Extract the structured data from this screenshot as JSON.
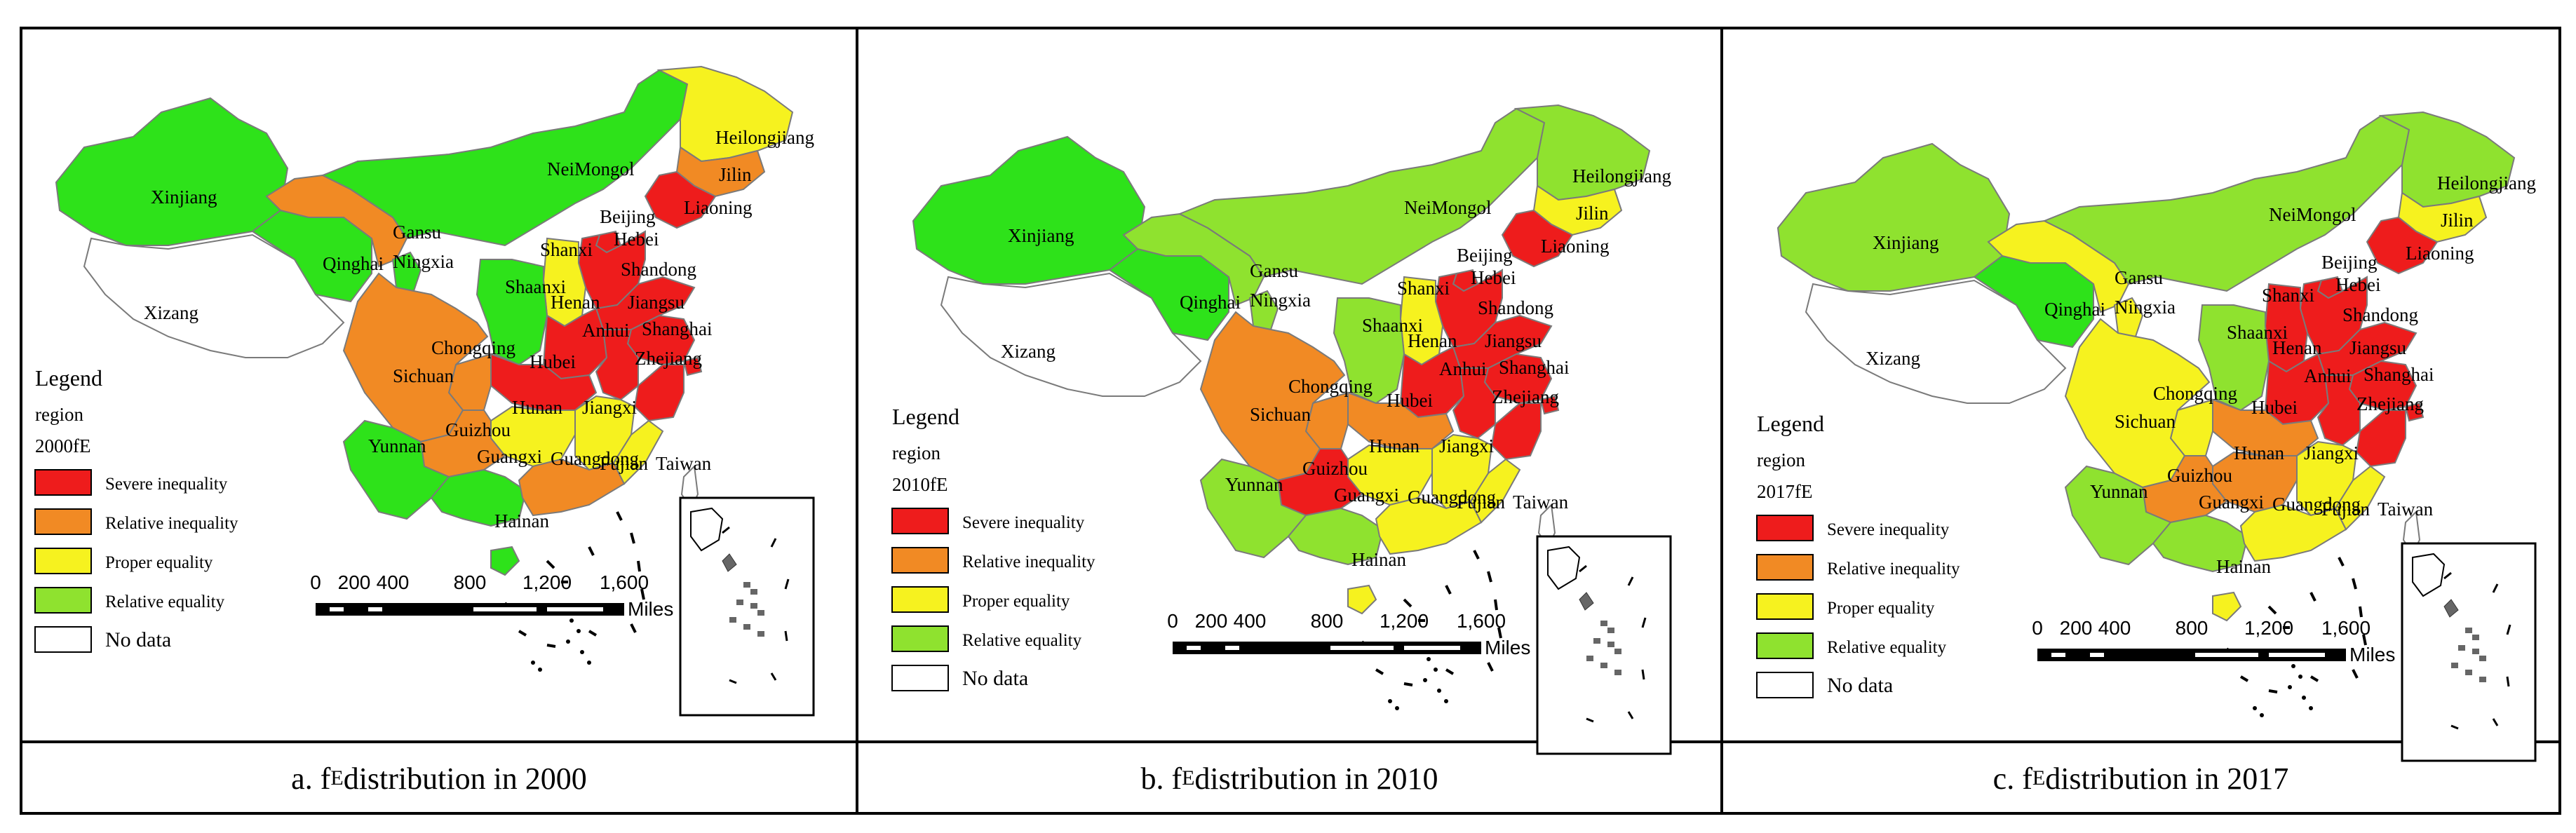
{
  "colors": {
    "severe": "#ee1c1c",
    "relative_inequality": "#f18a24",
    "proper": "#f6f21f",
    "relative_equality": "#8fe22f",
    "green_2000": "#2ee21a",
    "nodata": "#ffffff",
    "border": "#7a7a7a"
  },
  "legend_labels": {
    "title": "Legend",
    "region": "region",
    "severe": "Severe inequality",
    "relative_inequality": "Relative inequality",
    "proper": "Proper equality",
    "relative_equality": "Relative equality",
    "nodata": "No data"
  },
  "scalebar": {
    "ticks": [
      "0",
      "200",
      "400",
      "800",
      "1,200",
      "1,600"
    ],
    "unit": "Miles"
  },
  "panels": [
    {
      "year_label": "2000fE",
      "caption_prefix": "a. f",
      "caption_sub": "E",
      "caption_suffix": " distribution in 2000",
      "regions": {
        "Xinjiang": "equality",
        "Xizang": "nodata",
        "Qinghai": "equality",
        "Gansu": "relative_inequality",
        "Ningxia": "equality",
        "NeiMongol": "equality",
        "Heilongjiang": "proper",
        "Jilin": "relative_inequality",
        "Liaoning": "severe",
        "Beijing": "severe",
        "Hebei": "severe",
        "Shanxi": "proper",
        "Shaanxi": "equality",
        "Shandong": "severe",
        "Henan": "severe",
        "Jiangsu": "severe",
        "Anhui": "severe",
        "Shanghai": "severe",
        "Hubei": "severe",
        "Chongqing": "relative_inequality",
        "Sichuan": "relative_inequality",
        "Zhejiang": "severe",
        "Hunan": "proper",
        "Jiangxi": "proper",
        "Guizhou": "relative_inequality",
        "Yunnan": "equality",
        "Guangxi": "equality",
        "Guangdong": "relative_inequality",
        "Fujian": "proper",
        "Taiwan": "nodata",
        "Hainan": "equality"
      }
    },
    {
      "year_label": "2010fE",
      "caption_prefix": "b. f",
      "caption_sub": "E",
      "caption_suffix": " distribution in 2010",
      "regions": {
        "Xinjiang": "equality",
        "Xizang": "nodata",
        "Qinghai": "equality",
        "Gansu": "relative_equality",
        "Ningxia": "relative_equality",
        "NeiMongol": "relative_equality",
        "Heilongjiang": "relative_equality",
        "Jilin": "proper",
        "Liaoning": "severe",
        "Beijing": "severe",
        "Hebei": "severe",
        "Shanxi": "proper",
        "Shaanxi": "relative_equality",
        "Shandong": "severe",
        "Henan": "severe",
        "Jiangsu": "severe",
        "Anhui": "severe",
        "Shanghai": "severe",
        "Hubei": "relative_inequality",
        "Chongqing": "relative_inequality",
        "Sichuan": "relative_inequality",
        "Zhejiang": "severe",
        "Hunan": "proper",
        "Jiangxi": "proper",
        "Guizhou": "severe",
        "Yunnan": "relative_equality",
        "Guangxi": "relative_equality",
        "Guangdong": "proper",
        "Fujian": "proper",
        "Taiwan": "nodata",
        "Hainan": "proper"
      }
    },
    {
      "year_label": "2017fE",
      "caption_prefix": "c. f",
      "caption_sub": "E",
      "caption_suffix": " distribution in 2017",
      "regions": {
        "Xinjiang": "relative_equality",
        "Xizang": "nodata",
        "Qinghai": "equality",
        "Gansu": "proper",
        "Ningxia": "proper",
        "NeiMongol": "relative_equality",
        "Heilongjiang": "relative_equality",
        "Jilin": "proper",
        "Liaoning": "severe",
        "Beijing": "severe",
        "Hebei": "severe",
        "Shanxi": "severe",
        "Shaanxi": "relative_equality",
        "Shandong": "severe",
        "Henan": "severe",
        "Jiangsu": "severe",
        "Anhui": "severe",
        "Shanghai": "severe",
        "Hubei": "relative_inequality",
        "Chongqing": "proper",
        "Sichuan": "proper",
        "Zhejiang": "severe",
        "Hunan": "relative_inequality",
        "Jiangxi": "proper",
        "Guizhou": "relative_inequality",
        "Yunnan": "relative_equality",
        "Guangxi": "relative_equality",
        "Guangdong": "proper",
        "Fujian": "proper",
        "Taiwan": "nodata",
        "Hainan": "proper"
      }
    }
  ]
}
